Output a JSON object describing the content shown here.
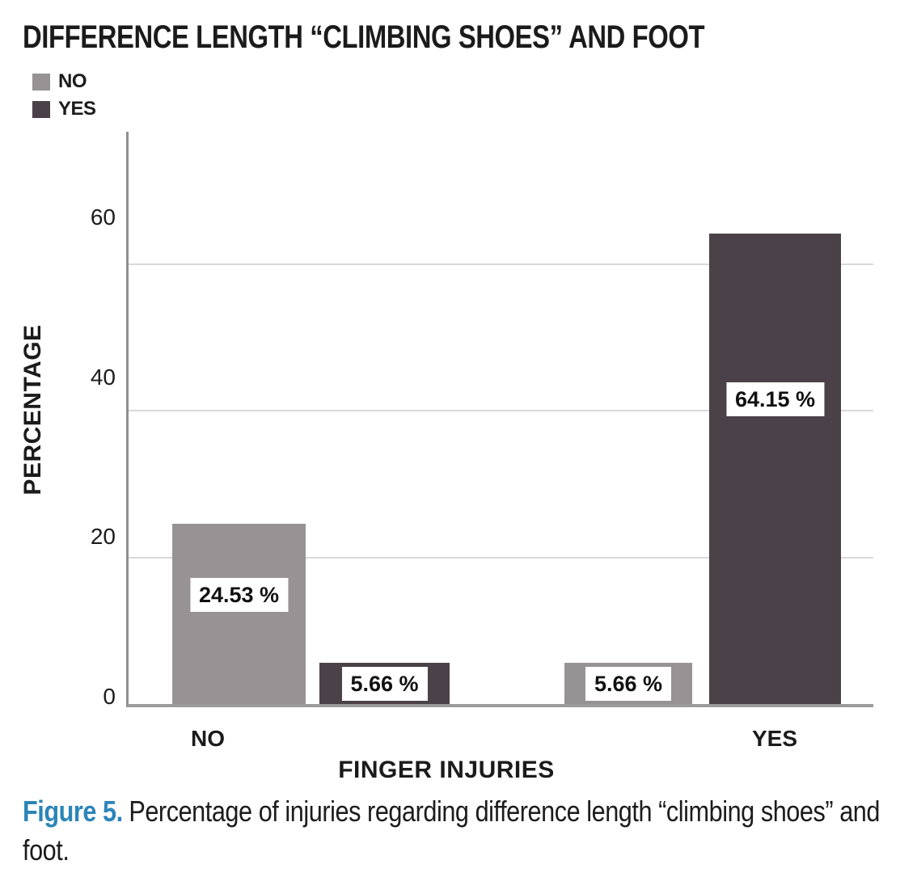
{
  "chart_data": {
    "type": "bar",
    "title": "DIFFERENCE LENGTH “CLIMBING SHOES” AND FOOT",
    "xlabel": "FINGER INJURIES",
    "ylabel": "PERCENTAGE",
    "categories": [
      "NO",
      "YES"
    ],
    "series": [
      {
        "name": "NO",
        "color": "#979394",
        "values": [
          24.53,
          5.66
        ],
        "labels": [
          "24.53 %",
          "5.66 %"
        ]
      },
      {
        "name": "YES",
        "color": "#4A4149",
        "values": [
          5.66,
          64.15
        ],
        "labels": [
          "5.66 %",
          "64.15 %"
        ]
      }
    ],
    "yticks": [
      {
        "value": 0,
        "label": "0"
      },
      {
        "value": 20,
        "label": "20"
      },
      {
        "value": 40,
        "label": "40"
      },
      {
        "value": 60,
        "label": "60"
      }
    ],
    "ylim": [
      0,
      78
    ],
    "grid": true,
    "legend_position": "top-left"
  },
  "caption": {
    "label": "Figure 5.",
    "text": "Percentage of injuries regarding difference length “climbing shoes” and foot."
  },
  "colors": {
    "bar_no": "#979394",
    "bar_yes": "#4A4149",
    "figure_label_blue": "#2B85B8",
    "gridline": "#D9D9D9",
    "axis_line": "#9B9B9B",
    "text": "#1B1B1B"
  }
}
